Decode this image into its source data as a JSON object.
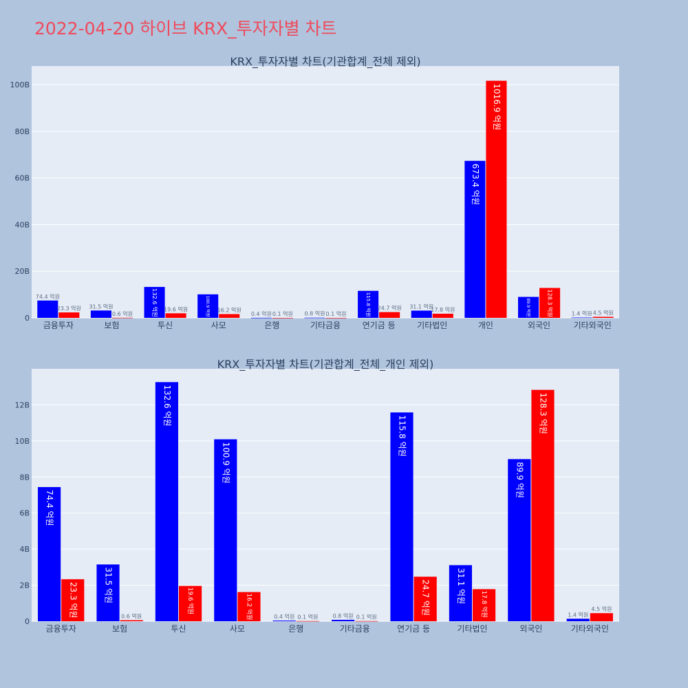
{
  "page": {
    "title": "2022-04-20 하이브 KRX_투자자별 차트"
  },
  "colors": {
    "background": "#b0c4de",
    "plot_bg": "#e5ecf6",
    "grid": "#ffffff",
    "title": "#ef4a5a",
    "text": "#2a3f5f",
    "buy": "#0000ff",
    "sell": "#ff0000"
  },
  "chart_data": [
    {
      "type": "bar",
      "title": "KRX_투자자별 차트(기관합계_전체 제외)",
      "categories": [
        "금융투자",
        "보험",
        "투신",
        "사모",
        "은행",
        "기타금융",
        "연기금 등",
        "기타법인",
        "개인",
        "외국인",
        "기타외국인"
      ],
      "series": [
        {
          "name": "buy",
          "values": [
            7.44,
            3.15,
            13.26,
            10.09,
            0.04,
            0.08,
            11.58,
            3.11,
            67.34,
            8.99,
            0.14
          ],
          "labels": [
            "74.4 억원",
            "31.5 억원",
            "132.6 억원",
            "100.9 억원",
            "0.4 억원",
            "0.8 억원",
            "115.8 억원",
            "31.1 억원",
            "673.4 억원",
            "89.9 억원",
            "1.4 억원"
          ]
        },
        {
          "name": "sell",
          "values": [
            2.33,
            0.06,
            1.96,
            1.62,
            0.01,
            0.01,
            2.47,
            1.78,
            101.69,
            12.83,
            0.45
          ],
          "labels": [
            "23.3 억원",
            "0.6 억원",
            "19.6 억원",
            "16.2 억원",
            "0.1 억원",
            "0.1 억원",
            "24.7 억원",
            "17.8 억원",
            "1016.9 억원",
            "128.3 억원",
            "4.5 억원"
          ]
        }
      ],
      "ylim": [
        0,
        108
      ],
      "yticks": [
        0,
        20,
        40,
        60,
        80,
        100
      ],
      "ytick_labels": [
        "0",
        "20B",
        "40B",
        "60B",
        "80B",
        "100B"
      ],
      "xlabel": "",
      "ylabel": ""
    },
    {
      "type": "bar",
      "title": "KRX_투자자별 차트(기관합계_전체_개인 제외)",
      "categories": [
        "금융투자",
        "보험",
        "투신",
        "사모",
        "은행",
        "기타금융",
        "연기금 등",
        "기타법인",
        "외국인",
        "기타외국인"
      ],
      "series": [
        {
          "name": "buy",
          "values": [
            7.44,
            3.15,
            13.26,
            10.09,
            0.04,
            0.08,
            11.58,
            3.11,
            8.99,
            0.14
          ],
          "labels": [
            "74.4 억원",
            "31.5 억원",
            "132.6 억원",
            "100.9 억원",
            "0.4 억원",
            "0.8 억원",
            "115.8 억원",
            "31.1 억원",
            "89.9 억원",
            "1.4 억원"
          ]
        },
        {
          "name": "sell",
          "values": [
            2.33,
            0.06,
            1.96,
            1.62,
            0.01,
            0.01,
            2.47,
            1.78,
            12.83,
            0.45
          ],
          "labels": [
            "23.3 억원",
            "0.6 억원",
            "19.6 억원",
            "16.2 억원",
            "0.1 억원",
            "0.1 억원",
            "24.7 억원",
            "17.8 억원",
            "128.3 억원",
            "4.5 억원"
          ]
        }
      ],
      "ylim": [
        0,
        14
      ],
      "yticks": [
        0,
        2,
        4,
        6,
        8,
        10,
        12
      ],
      "ytick_labels": [
        "0",
        "2B",
        "4B",
        "6B",
        "8B",
        "10B",
        "12B"
      ],
      "xlabel": "",
      "ylabel": ""
    }
  ]
}
